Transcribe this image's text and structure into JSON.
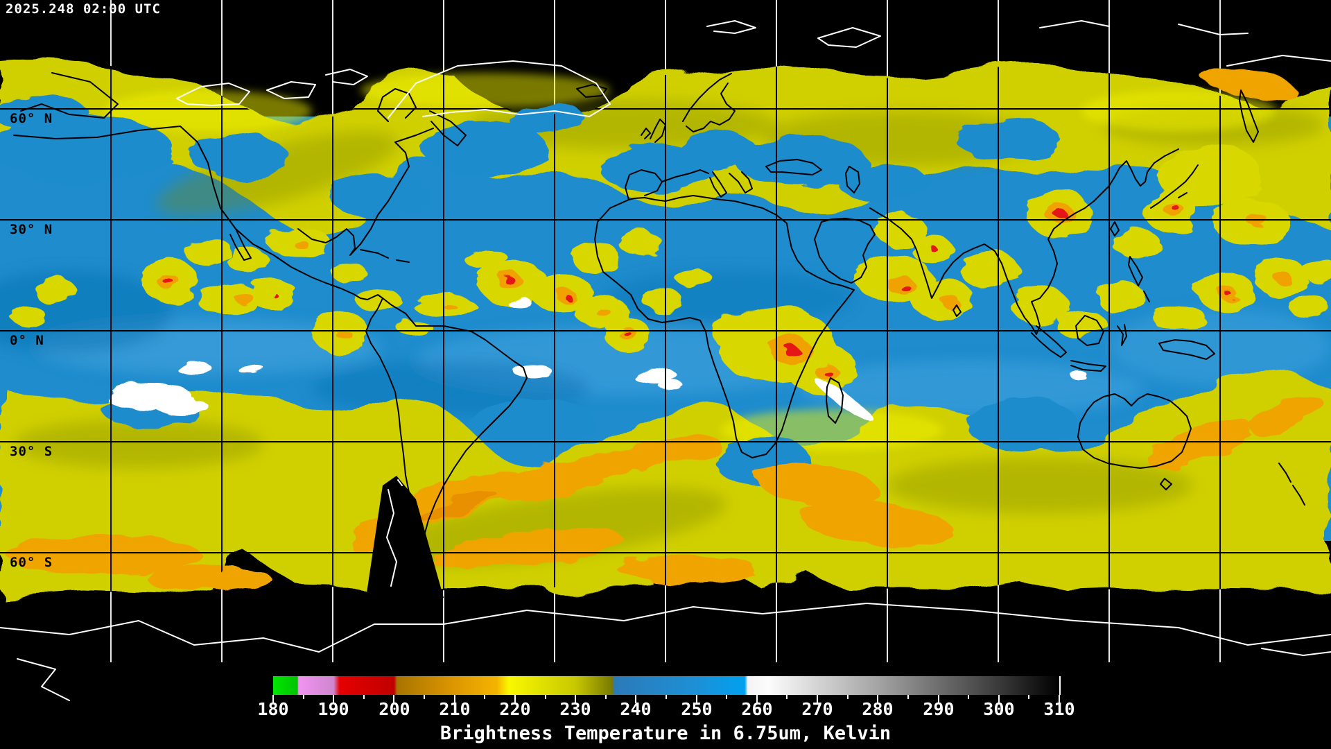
{
  "header": {
    "timestamp": "2025.248 02:00 UTC"
  },
  "map": {
    "latitude_labels": [
      "60° N",
      "30° N",
      "0° N",
      "30° S",
      "60° S"
    ],
    "grid_lat_deg": [
      60,
      30,
      0,
      -30,
      -60
    ],
    "grid_lon_step_deg": 30,
    "colors": {
      "background": "#000000",
      "mid_moisture_blue": "#1e8ccd",
      "upper_moisture_yellow": "#d6d600",
      "cold_cloud_orange": "#efa400",
      "coldest_cloud_red": "#e41414",
      "cloud_white": "#ffffff",
      "coastline_on_data": "#000000",
      "coastline_on_void": "#ffffff",
      "graticule_on_data": "#000000",
      "graticule_on_void": "#ffffff"
    }
  },
  "colorbar": {
    "title": "Brightness Temperature in 6.75um, Kelvin",
    "units": "Kelvin",
    "min": 180,
    "max": 310,
    "tick_labels": [
      "180",
      "190",
      "200",
      "210",
      "220",
      "230",
      "240",
      "250",
      "260",
      "270",
      "280",
      "290",
      "300",
      "310"
    ],
    "minor_tick_values": [
      185,
      195,
      205,
      215,
      225,
      235,
      245,
      255,
      265,
      275,
      285,
      295,
      305
    ],
    "palette_stops": [
      {
        "value": 180,
        "color": "#00e600"
      },
      {
        "value": 184,
        "color": "#00c400"
      },
      {
        "value": 184.2,
        "color": "#f293f2"
      },
      {
        "value": 190,
        "color": "#cf86cf"
      },
      {
        "value": 191,
        "color": "#e60000"
      },
      {
        "value": 200,
        "color": "#c00000"
      },
      {
        "value": 200.5,
        "color": "#a87400"
      },
      {
        "value": 210,
        "color": "#dd9700"
      },
      {
        "value": 217,
        "color": "#f5b300"
      },
      {
        "value": 219,
        "color": "#f8f800"
      },
      {
        "value": 230,
        "color": "#c8c800"
      },
      {
        "value": 236,
        "color": "#7a7a00"
      },
      {
        "value": 236.5,
        "color": "#2b7ab8"
      },
      {
        "value": 250,
        "color": "#1e90d6"
      },
      {
        "value": 258,
        "color": "#00a0f0"
      },
      {
        "value": 258.5,
        "color": "#f4f4f4"
      },
      {
        "value": 262,
        "color": "#fcfcfc"
      },
      {
        "value": 270,
        "color": "#d4d4d4"
      },
      {
        "value": 280,
        "color": "#a4a4a4"
      },
      {
        "value": 290,
        "color": "#6e6e6e"
      },
      {
        "value": 300,
        "color": "#3a3a3a"
      },
      {
        "value": 310,
        "color": "#000000"
      }
    ]
  }
}
